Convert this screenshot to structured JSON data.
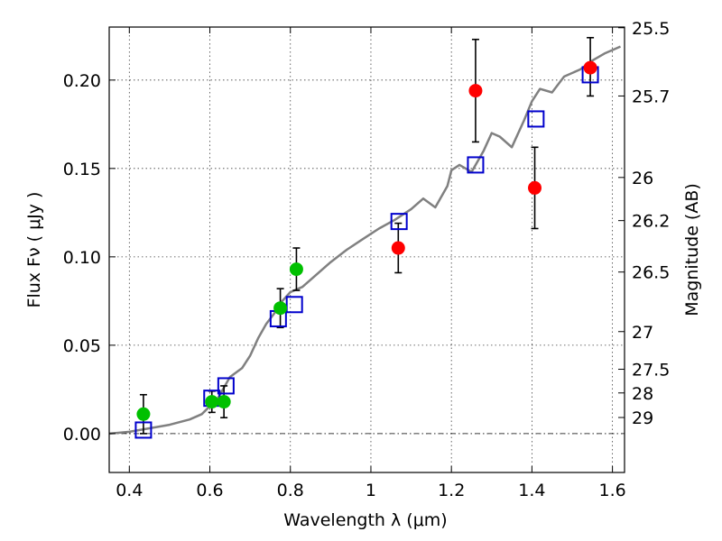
{
  "chart_data": {
    "type": "scatter",
    "title": "",
    "xlabel": "Wavelength  λ (μm)",
    "ylabel": "Flux  Fν  ( μJy )",
    "y2label": "Magnitude (AB)",
    "xlim": [
      0.35,
      1.63
    ],
    "ylim": [
      -0.022,
      0.23
    ],
    "xticks": [
      0.4,
      0.6,
      0.8,
      1.0,
      1.2,
      1.4,
      1.6
    ],
    "xtick_labels": [
      "0.4",
      "0.6",
      "0.8",
      "1",
      "1.2",
      "1.4",
      "1.6"
    ],
    "yticks": [
      0.0,
      0.05,
      0.1,
      0.15,
      0.2
    ],
    "ytick_labels": [
      "0.00",
      "0.05",
      "0.10",
      "0.15",
      "0.20"
    ],
    "right_ticks": [
      {
        "label": "25.5",
        "flux": 0.2296
      },
      {
        "label": "25.7",
        "flux": 0.191
      },
      {
        "label": "26",
        "flux": 0.1449
      },
      {
        "label": "26.2",
        "flux": 0.1205
      },
      {
        "label": "26.5",
        "flux": 0.0914
      },
      {
        "label": "27",
        "flux": 0.0577
      },
      {
        "label": "27.5",
        "flux": 0.0364
      },
      {
        "label": "28",
        "flux": 0.023
      },
      {
        "label": "29",
        "flux": 0.0091
      }
    ],
    "grid": true,
    "zero_line": true,
    "series": [
      {
        "kind": "line",
        "color": "#808080",
        "x": [
          0.35,
          0.4,
          0.45,
          0.5,
          0.55,
          0.58,
          0.62,
          0.65,
          0.68,
          0.7,
          0.72,
          0.74,
          0.76,
          0.78,
          0.8,
          0.83,
          0.86,
          0.9,
          0.94,
          0.98,
          1.02,
          1.06,
          1.1,
          1.13,
          1.16,
          1.19,
          1.2,
          1.22,
          1.25,
          1.28,
          1.3,
          1.32,
          1.35,
          1.38,
          1.4,
          1.42,
          1.45,
          1.48,
          1.52,
          1.55,
          1.58,
          1.62
        ],
        "y": [
          0.0,
          0.001,
          0.003,
          0.005,
          0.008,
          0.011,
          0.02,
          0.032,
          0.037,
          0.044,
          0.054,
          0.062,
          0.068,
          0.075,
          0.08,
          0.083,
          0.089,
          0.097,
          0.104,
          0.11,
          0.116,
          0.121,
          0.127,
          0.133,
          0.128,
          0.14,
          0.149,
          0.152,
          0.148,
          0.16,
          0.17,
          0.168,
          0.162,
          0.177,
          0.188,
          0.195,
          0.193,
          0.202,
          0.206,
          0.211,
          0.215,
          0.219
        ]
      },
      {
        "kind": "points",
        "marker": "circle",
        "color": "#00c000",
        "x": [
          0.435,
          0.605,
          0.635,
          0.775,
          0.815
        ],
        "y": [
          0.011,
          0.018,
          0.018,
          0.071,
          0.093
        ],
        "yerr_low": [
          0.011,
          0.006,
          0.009,
          0.011,
          0.012
        ],
        "yerr_high": [
          0.011,
          0.006,
          0.009,
          0.011,
          0.012
        ]
      },
      {
        "kind": "points",
        "marker": "circle",
        "color": "#ff0000",
        "x": [
          1.068,
          1.26,
          1.407,
          1.545
        ],
        "y": [
          0.105,
          0.194,
          0.139,
          0.207
        ],
        "yerr_low": [
          0.014,
          0.029,
          0.023,
          0.016
        ],
        "yerr_high": [
          0.014,
          0.029,
          0.023,
          0.017
        ]
      },
      {
        "kind": "points",
        "marker": "open-square",
        "color": "#0000cc",
        "x": [
          0.435,
          0.605,
          0.64,
          0.77,
          0.81,
          1.07,
          1.26,
          1.41,
          1.545
        ],
        "y": [
          0.002,
          0.02,
          0.027,
          0.065,
          0.073,
          0.12,
          0.152,
          0.178,
          0.203
        ]
      }
    ]
  }
}
